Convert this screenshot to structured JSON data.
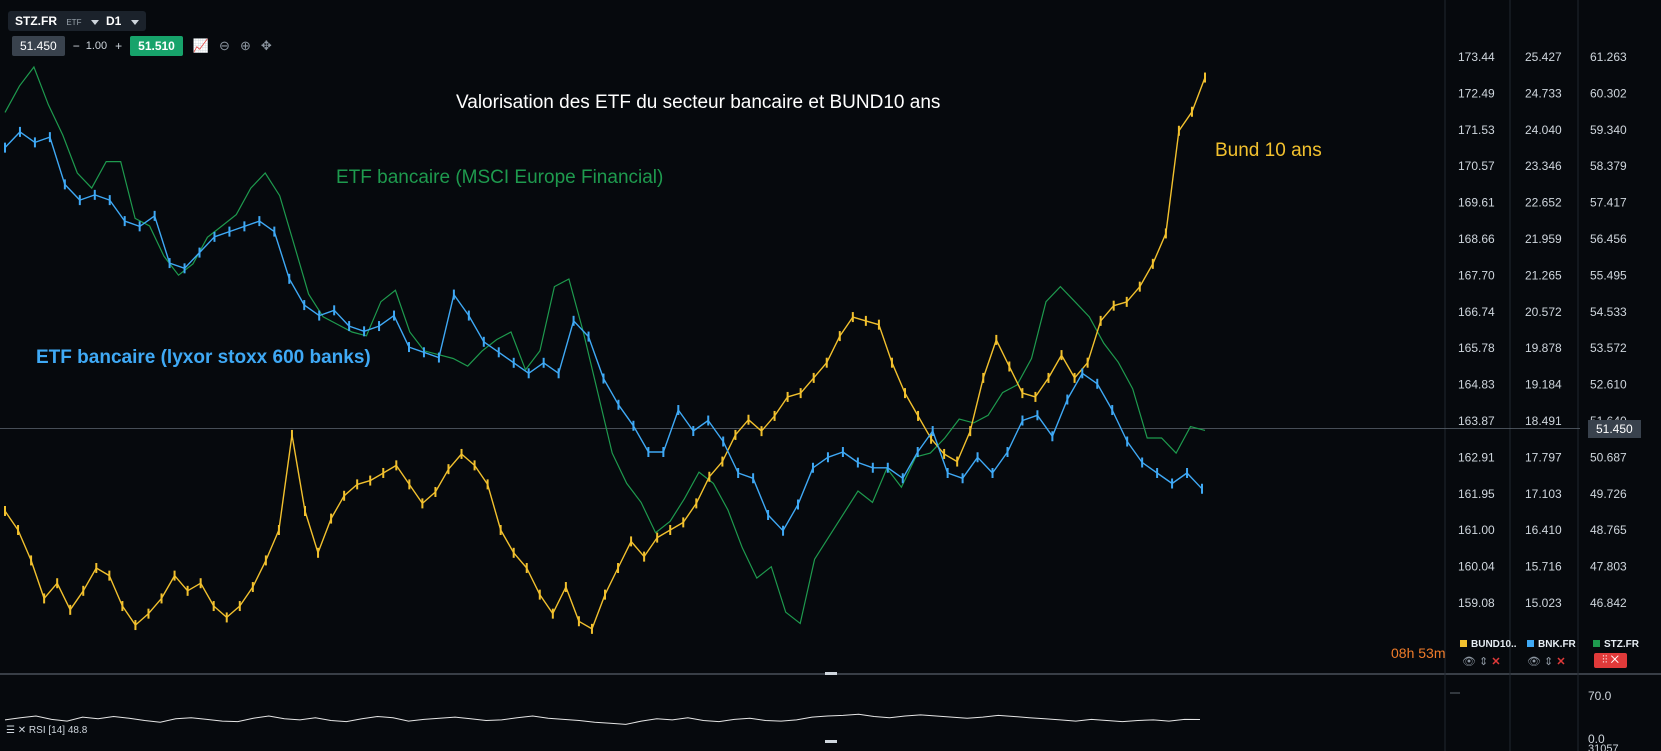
{
  "toolbar": {
    "symbol": "STZ.FR",
    "symbol_type": "ETF",
    "timeframe": "D1",
    "bid": "51.450",
    "minus": "−",
    "qty": "1.00",
    "plus": "+",
    "ask": "51.510"
  },
  "annotations": {
    "title": "Valorisation des ETF du secteur bancaire et BUND10 ans",
    "green_label": "ETF bancaire (MSCI Europe Financial)",
    "blue_label": "ETF bancaire (lyxor stoxx 600 banks)",
    "yellow_label": "Bund 10 ans"
  },
  "colors": {
    "background": "#06090d",
    "bund": "#f2c12e",
    "bnk": "#3fa9f5",
    "stz": "#1e9a4e",
    "rsi": "#e6e6e6",
    "grid": "#2a3038",
    "countdown": "#f07c2a",
    "delete": "#e03a3a"
  },
  "price_badge": "51.450",
  "countdown": "08h 53m",
  "legend": [
    {
      "name": "BUND10..",
      "color": "#f2c12e"
    },
    {
      "name": "BNK.FR",
      "color": "#3fa9f5"
    },
    {
      "name": "STZ.FR",
      "color": "#1e9a4e"
    }
  ],
  "legend_controls": {
    "eye": "👁",
    "arrows": "⇕",
    "close": "✕"
  },
  "rsi": {
    "label": "RSI [14] 48.8",
    "high": "70.0",
    "low": "0.0",
    "cut": "31057"
  },
  "chart_data": {
    "type": "line",
    "axes": [
      {
        "name": "BUND10",
        "ticks": [
          "173.44",
          "172.49",
          "171.53",
          "170.57",
          "169.61",
          "168.66",
          "167.70",
          "166.74",
          "165.78",
          "164.83",
          "163.87",
          "162.91",
          "161.95",
          "161.00",
          "160.04",
          "159.08"
        ]
      },
      {
        "name": "BNK.FR",
        "ticks": [
          "25.427",
          "24.733",
          "24.040",
          "23.346",
          "22.652",
          "21.959",
          "21.265",
          "20.572",
          "19.878",
          "19.184",
          "18.491",
          "17.797",
          "17.103",
          "16.410",
          "15.716",
          "15.023"
        ]
      },
      {
        "name": "STZ.FR",
        "ticks": [
          "61.263",
          "60.302",
          "59.340",
          "58.379",
          "57.417",
          "56.456",
          "55.495",
          "54.533",
          "53.572",
          "52.610",
          "51.640",
          "50.687",
          "49.726",
          "48.765",
          "47.803",
          "46.842"
        ]
      }
    ],
    "series": [
      {
        "name": "BUND10..",
        "axis": 0,
        "values": [
          161.5,
          161.0,
          160.2,
          159.2,
          159.6,
          158.9,
          159.4,
          160.0,
          159.8,
          159.0,
          158.5,
          158.8,
          159.2,
          159.8,
          159.4,
          159.6,
          159.0,
          158.7,
          159.0,
          159.5,
          160.2,
          161.0,
          163.5,
          161.5,
          160.4,
          161.3,
          161.9,
          162.2,
          162.3,
          162.5,
          162.7,
          162.2,
          161.7,
          162.0,
          162.6,
          163.0,
          162.7,
          162.2,
          161.0,
          160.4,
          160.0,
          159.3,
          158.8,
          159.5,
          158.6,
          158.4,
          159.3,
          160.0,
          160.7,
          160.3,
          160.8,
          161.0,
          161.2,
          161.7,
          162.4,
          162.8,
          163.5,
          163.9,
          163.6,
          164.0,
          164.5,
          164.6,
          165.0,
          165.4,
          166.1,
          166.6,
          166.5,
          166.4,
          165.4,
          164.6,
          164.0,
          163.4,
          163.0,
          162.8,
          163.6,
          165.0,
          166.0,
          165.3,
          164.6,
          164.5,
          165.0,
          165.6,
          165.0,
          165.4,
          166.5,
          166.9,
          167.0,
          167.4,
          168.0,
          168.8,
          171.5,
          172.0,
          172.9
        ]
      },
      {
        "name": "BNK.FR",
        "axis": 1,
        "values": [
          23.7,
          24.0,
          23.8,
          23.9,
          23.0,
          22.7,
          22.8,
          22.7,
          22.3,
          22.2,
          22.4,
          21.5,
          21.4,
          21.7,
          22.0,
          22.1,
          22.2,
          22.3,
          22.1,
          21.2,
          20.7,
          20.5,
          20.6,
          20.3,
          20.2,
          20.3,
          20.5,
          19.9,
          19.8,
          19.7,
          20.9,
          20.5,
          20.0,
          19.8,
          19.6,
          19.4,
          19.6,
          19.4,
          20.4,
          20.1,
          19.3,
          18.8,
          18.4,
          17.9,
          17.9,
          18.7,
          18.3,
          18.5,
          18.1,
          17.5,
          17.4,
          16.7,
          16.4,
          16.9,
          17.6,
          17.8,
          17.9,
          17.7,
          17.6,
          17.6,
          17.4,
          17.9,
          18.3,
          17.5,
          17.4,
          17.8,
          17.5,
          17.9,
          18.5,
          18.6,
          18.2,
          18.9,
          19.4,
          19.2,
          18.7,
          18.1,
          17.7,
          17.5,
          17.3,
          17.5,
          17.2
        ]
      },
      {
        "name": "STZ.FR",
        "axis": 2,
        "values": [
          59.8,
          60.5,
          61.0,
          60.0,
          59.2,
          58.2,
          57.8,
          58.5,
          58.5,
          57.0,
          56.8,
          56.0,
          55.5,
          55.8,
          56.5,
          56.8,
          57.1,
          57.8,
          58.2,
          57.6,
          56.3,
          55.0,
          54.4,
          54.2,
          54.0,
          53.9,
          54.8,
          55.1,
          54.0,
          53.5,
          53.4,
          53.3,
          53.1,
          53.5,
          53.8,
          54.0,
          53.0,
          53.5,
          55.2,
          55.4,
          54.0,
          52.4,
          50.8,
          50.0,
          49.5,
          48.7,
          49.0,
          49.6,
          50.3,
          50.0,
          49.3,
          48.3,
          47.5,
          47.8,
          46.6,
          46.3,
          48.0,
          48.6,
          49.2,
          49.8,
          49.5,
          50.4,
          49.9,
          50.7,
          50.8,
          51.2,
          51.7,
          51.6,
          51.8,
          52.4,
          52.6,
          53.3,
          54.8,
          55.2,
          54.8,
          54.4,
          53.7,
          53.2,
          52.5,
          51.2,
          51.2,
          50.8,
          51.5,
          51.4
        ]
      },
      {
        "name": "RSI [14]",
        "axis": "rsi",
        "values": [
          48,
          52,
          55,
          49,
          46,
          53,
          50,
          54,
          51,
          47,
          44,
          50,
          52,
          49,
          46,
          45,
          51,
          55,
          50,
          48,
          52,
          47,
          45,
          50,
          54,
          52,
          46,
          49,
          51,
          53,
          50,
          47,
          48,
          52,
          55,
          51,
          49,
          47,
          44,
          42,
          40,
          46,
          50,
          48,
          52,
          47,
          45,
          49,
          51,
          47,
          46,
          48,
          53,
          55,
          56,
          58,
          54,
          52,
          55,
          57,
          55,
          53,
          51,
          53,
          56,
          54,
          52,
          50,
          48,
          46,
          49,
          47,
          45,
          47,
          48,
          46,
          49,
          48.8
        ]
      }
    ]
  }
}
